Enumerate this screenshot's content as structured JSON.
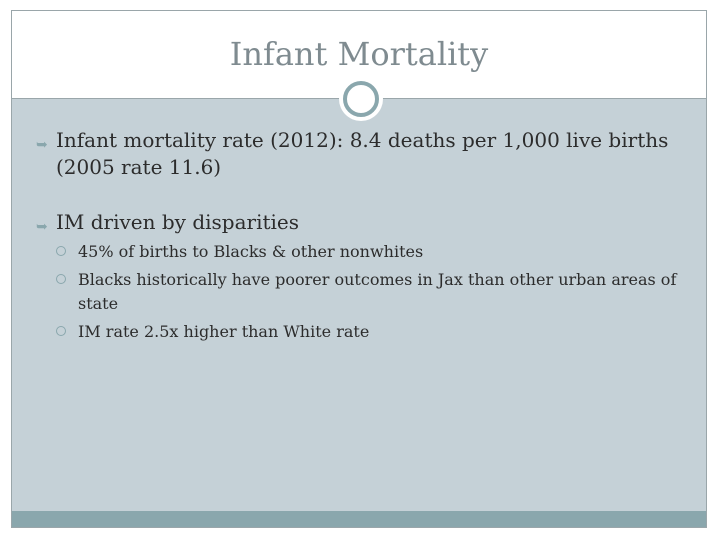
{
  "slide": {
    "title": "Infant Mortality",
    "bullets": [
      {
        "text": "Infant mortality rate (2012): 8.4 deaths per 1,000 live births (2005 rate 11.6)",
        "sub": []
      },
      {
        "text": "IM driven by disparities",
        "sub": [
          "45% of births to Blacks & other nonwhites",
          "Blacks historically have poorer outcomes in Jax than other urban areas of state",
          "IM rate 2.5x higher than White rate"
        ]
      }
    ]
  },
  "colors": {
    "title": "#7f8b90",
    "body_bg": "#c5d1d7",
    "accent": "#8aa7ad",
    "text": "#2c2c2c"
  }
}
